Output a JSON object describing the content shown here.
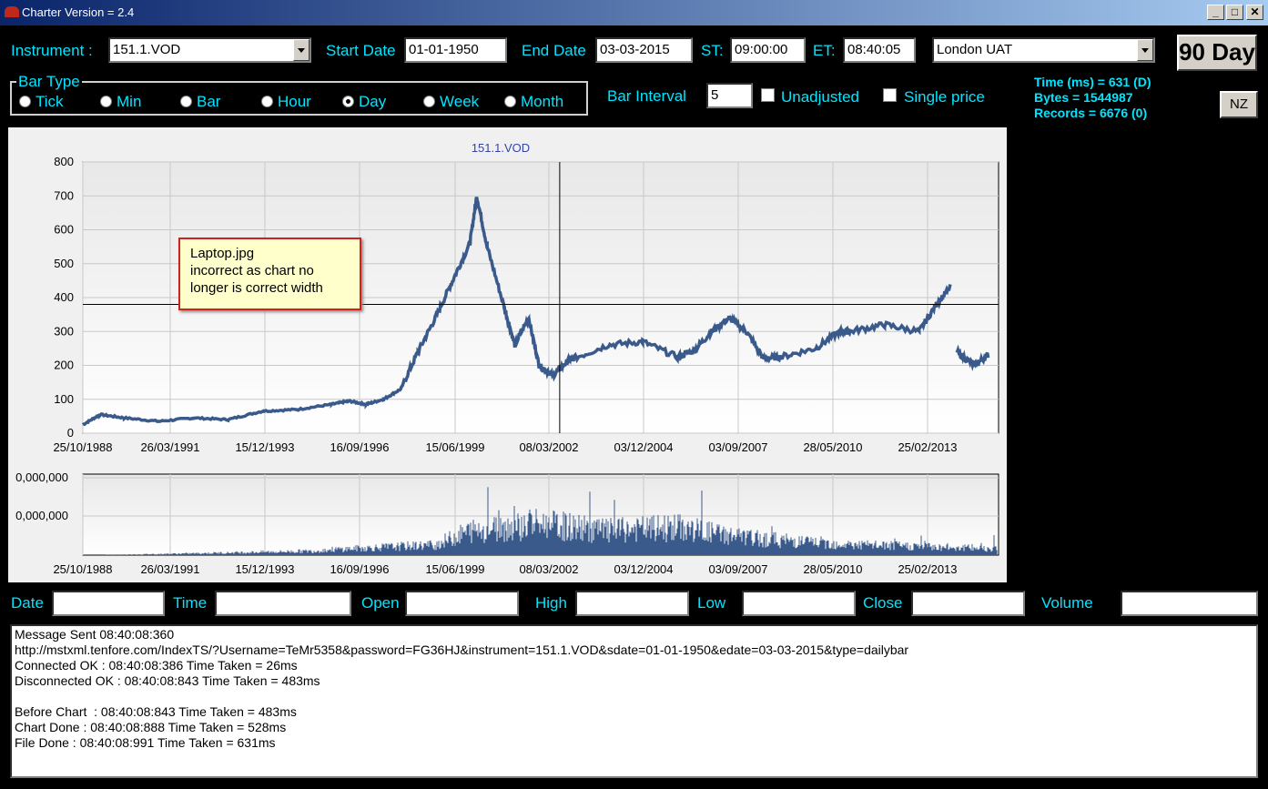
{
  "window": {
    "title": "Charter Version = 2.4"
  },
  "controls": {
    "instrument_label": "Instrument :",
    "instrument_value": "151.1.VOD",
    "start_date_label": "Start Date",
    "start_date_value": "01-01-1950",
    "end_date_label": "End Date",
    "end_date_value": "03-03-2015",
    "st_label": "ST:",
    "st_value": "09:00:00",
    "et_label": "ET:",
    "et_value": "08:40:05",
    "server_value": "London UAT",
    "range_button": "90 Day",
    "bar_type_label": "Bar Type",
    "bar_types": [
      "Tick",
      "Min",
      "Bar",
      "Hour",
      "Day",
      "Week",
      "Month"
    ],
    "bar_type_selected": "Day",
    "bar_interval_label": "Bar Interval",
    "bar_interval_value": "5",
    "unadjusted_label": "Unadjusted",
    "single_price_label": "Single price",
    "nz_button": "NZ"
  },
  "stats": {
    "time": "Time (ms) = 631 (D)",
    "bytes": "Bytes = 1544987",
    "records": "Records = 6676 (0)"
  },
  "annotation": {
    "line1": "Laptop.jpg",
    "line2": "incorrect as chart no",
    "line3": "longer is correct width"
  },
  "chart_data": [
    {
      "type": "line",
      "title": "151.1.VOD",
      "xlabel": "",
      "ylabel": "",
      "x_tick_labels": [
        "25/10/1988",
        "26/03/1991",
        "15/12/1993",
        "16/09/1996",
        "15/06/1999",
        "08/03/2002",
        "03/12/2004",
        "03/09/2007",
        "28/05/2010",
        "25/02/2013"
      ],
      "y_ticks": [
        "0",
        "100",
        "200",
        "300",
        "400",
        "500",
        "600",
        "700",
        "800"
      ],
      "ylim": [
        0,
        800
      ],
      "x_years": [
        1988.8,
        1989.3,
        1990.0,
        1991.0,
        1992.0,
        1993.0,
        1994.0,
        1995.0,
        1996.0,
        1996.5,
        1997.0,
        1997.5,
        1998.0,
        1998.5,
        1999.0,
        1999.5,
        2000.0,
        2000.2,
        2000.5,
        2001.0,
        2001.3,
        2001.7,
        2002.0,
        2002.4,
        2002.8,
        2003.0,
        2004.0,
        2005.0,
        2006.0,
        2006.5,
        2007.0,
        2007.5,
        2008.0,
        2008.5,
        2009.0,
        2010.0,
        2010.7,
        2011.0,
        2012.0,
        2013.0,
        2013.5,
        2013.9,
        2014.1,
        2014.6,
        2015.0
      ],
      "close": [
        25,
        55,
        45,
        35,
        45,
        40,
        65,
        70,
        85,
        95,
        85,
        100,
        130,
        240,
        340,
        450,
        560,
        700,
        550,
        370,
        260,
        340,
        200,
        170,
        210,
        220,
        260,
        270,
        225,
        245,
        300,
        340,
        300,
        220,
        225,
        250,
        300,
        300,
        320,
        300,
        380,
        430,
        240,
        200,
        230
      ],
      "crosshair": {
        "x_year": 2002.6,
        "y": 380
      }
    },
    {
      "type": "bar",
      "title": "",
      "y_tick_labels": [
        "0,000,000",
        "0,000,000"
      ],
      "x_tick_labels": [
        "25/10/1988",
        "26/03/1991",
        "15/12/1993",
        "16/09/1996",
        "15/06/1999",
        "08/03/2002",
        "03/12/2004",
        "03/09/2007",
        "28/05/2010",
        "25/02/2013"
      ],
      "volume_profile_years": [
        1988.8,
        1991.5,
        1995.5,
        1996.0,
        1999.0,
        2000.0,
        2002.0,
        2004.0,
        2006.0,
        2008.0,
        2011.0,
        2015.0
      ],
      "volume_level": [
        0.0,
        0.02,
        0.06,
        0.08,
        0.15,
        0.35,
        0.45,
        0.35,
        0.4,
        0.25,
        0.15,
        0.1
      ]
    }
  ],
  "data_fields": {
    "labels": [
      "Date",
      "Time",
      "Open",
      "High",
      "Low",
      "Close",
      "Volume"
    ]
  },
  "log": {
    "lines": [
      "Message Sent 08:40:08:360",
      "http://mstxml.tenfore.com/IndexTS/?Username=TeMr5358&password=FG36HJ&instrument=151.1.VOD&sdate=01-01-1950&edate=03-03-2015&type=dailybar",
      "Connected OK : 08:40:08:386 Time Taken = 26ms",
      "Disconnected OK : 08:40:08:843 Time Taken = 483ms",
      "",
      "Before Chart  : 08:40:08:843 Time Taken = 483ms",
      "Chart Done : 08:40:08:888 Time Taken = 528ms",
      "File Done : 08:40:08:991 Time Taken = 631ms"
    ]
  }
}
